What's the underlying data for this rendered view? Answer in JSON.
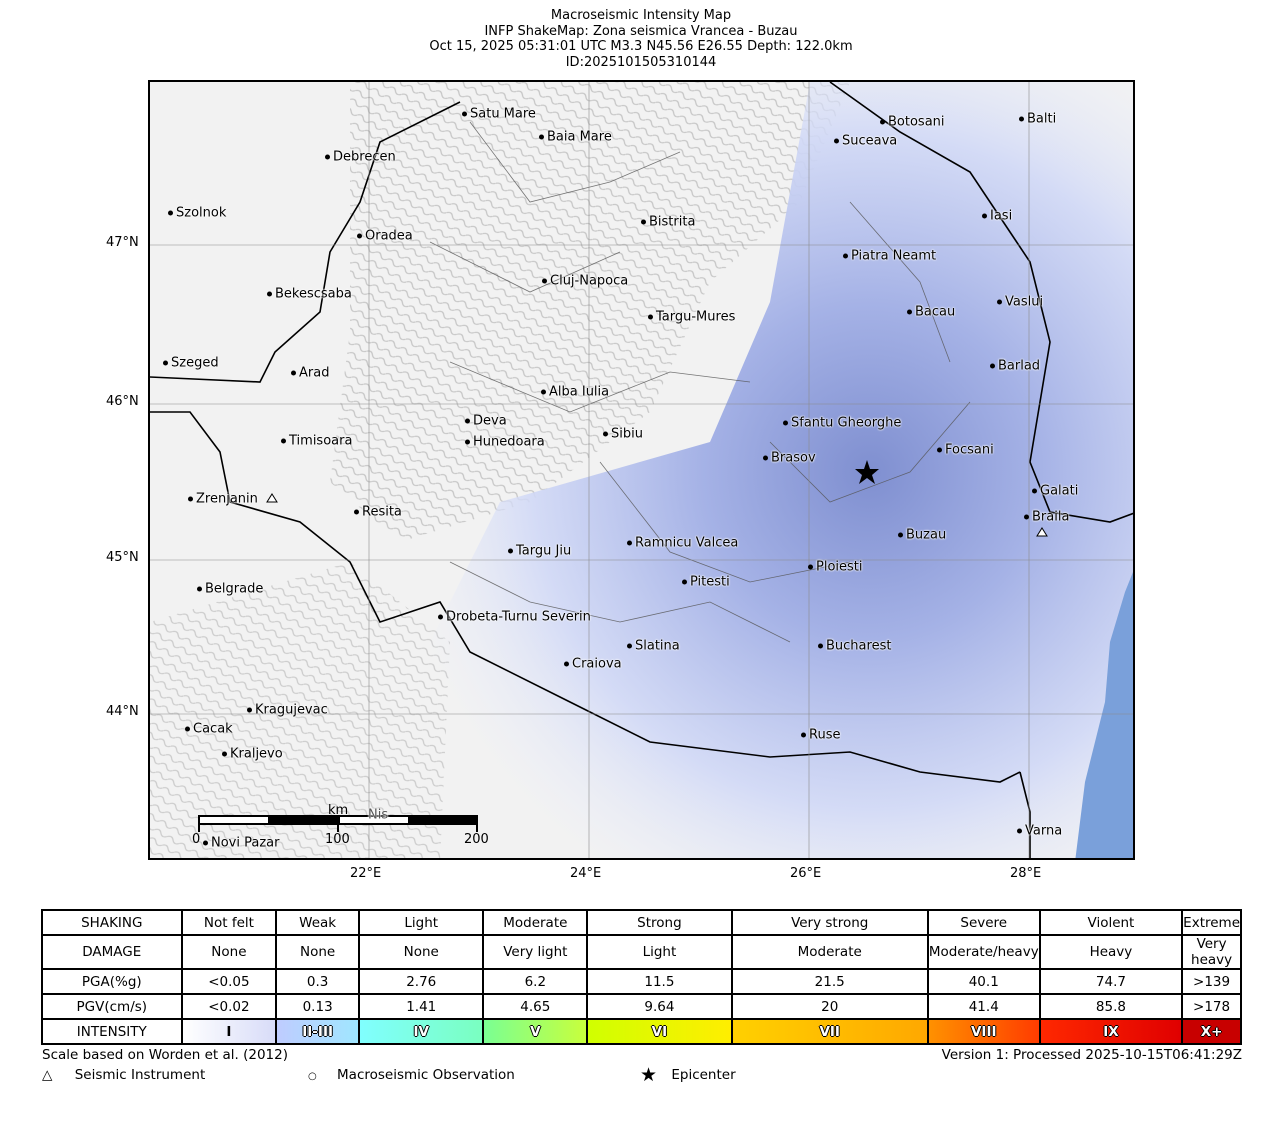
{
  "title": {
    "line1": "Macroseismic Intensity Map",
    "line2": "INFP ShakeMap: Zona seismica Vrancea - Buzau",
    "line3": "Oct 15, 2025 05:31:01 UTC M3.3 N45.56 E26.55 Depth: 122.0km",
    "line4": "ID:2025101505310144"
  },
  "axes": {
    "lat": [
      "47°N",
      "46°N",
      "45°N",
      "44°N"
    ],
    "lon": [
      "22°E",
      "24°E",
      "26°E",
      "28°E"
    ]
  },
  "scalebar": {
    "unit": "km",
    "ticks": [
      "0",
      "100",
      "200"
    ]
  },
  "cities": [
    "Satu Mare",
    "Baia Mare",
    "Debrecen",
    "Szolnok",
    "Oradea",
    "Bistrita",
    "Bekescsaba",
    "Cluj-Napoca",
    "Targu-Mures",
    "Szeged",
    "Arad",
    "Alba Iulia",
    "Deva",
    "Hunedoara",
    "Timisoara",
    "Sibiu",
    "Zrenjanin",
    "Resita",
    "Targu Jiu",
    "Ramnicu Valcea",
    "Pitesti",
    "Belgrade",
    "Drobeta-Turnu Severin",
    "Slatina",
    "Craiova",
    "Kragujevac",
    "Cacak",
    "Kraljevo",
    "Ruse",
    "Bucharest",
    "Ploiesti",
    "Buzau",
    "Brasov",
    "Sfantu Gheorghe",
    "Focsani",
    "Galati",
    "Braila",
    "Piatra Neamt",
    "Bacau",
    "Vaslui",
    "Barlad",
    "Iasi",
    "Suceava",
    "Botosani",
    "Balti",
    "Varna",
    "Novi Pazar",
    "Nis"
  ],
  "legend": {
    "rows": [
      {
        "header": "SHAKING",
        "cells": [
          "Not felt",
          "Weak",
          "Light",
          "Moderate",
          "Strong",
          "Very strong",
          "Severe",
          "Violent",
          "Extreme"
        ]
      },
      {
        "header": "DAMAGE",
        "cells": [
          "None",
          "None",
          "None",
          "Very light",
          "Light",
          "Moderate",
          "Moderate/heavy",
          "Heavy",
          "Very heavy"
        ]
      },
      {
        "header": "PGA(%g)",
        "cells": [
          "<0.05",
          "0.3",
          "2.76",
          "6.2",
          "11.5",
          "21.5",
          "40.1",
          "74.7",
          ">139"
        ]
      },
      {
        "header": "PGV(cm/s)",
        "cells": [
          "<0.02",
          "0.13",
          "1.41",
          "4.65",
          "9.64",
          "20",
          "41.4",
          "85.8",
          ">178"
        ]
      }
    ],
    "intensity_header": "INTENSITY",
    "intensity": [
      "I",
      "II-III",
      "IV",
      "V",
      "VI",
      "VII",
      "VIII",
      "IX",
      "X+"
    ],
    "colors": [
      [
        "#ffffff",
        "#d8dcf8"
      ],
      [
        "#bfccff",
        "#a0e6ff"
      ],
      [
        "#80ffff",
        "#7affc0"
      ],
      [
        "#7aff93",
        "#c8ff3c"
      ],
      [
        "#d0ff00",
        "#ffee00"
      ],
      [
        "#ffd000",
        "#ffa800"
      ],
      [
        "#ff9100",
        "#ff3c00"
      ],
      [
        "#ff2800",
        "#e00000"
      ],
      [
        "#c80000",
        "#c80000"
      ]
    ]
  },
  "footer": {
    "scale_note": "Scale based on Worden et al. (2012)",
    "version": "Version 1: Processed 2025-10-15T06:41:29Z",
    "instrument": "Seismic Instrument",
    "observation": "Macroseismic Observation",
    "epicenter": "Epicenter"
  }
}
